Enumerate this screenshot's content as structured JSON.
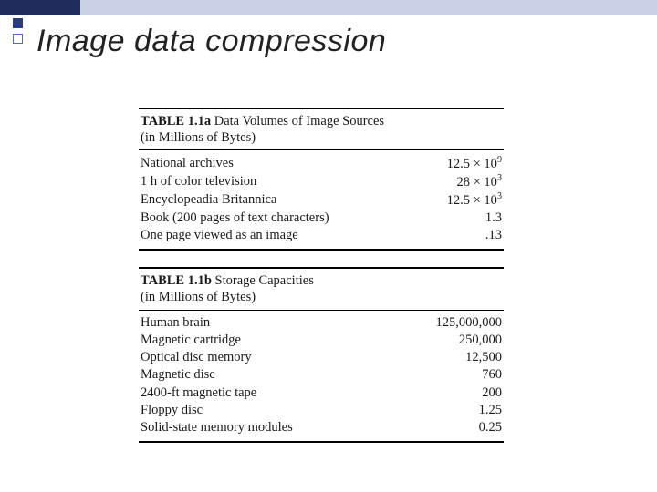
{
  "page": {
    "title": "Image data compression",
    "colors": {
      "topbar_dark": "#1f2c5c",
      "topbar_light": "#c9d0e8",
      "bullet_filled": "#2a3c7a",
      "bullet_border": "#5b6da8",
      "rule": "#000000",
      "text": "#1a1a1a",
      "background": "#ffffff"
    }
  },
  "table_a": {
    "label": "TABLE 1.1a",
    "caption_line1": "Data Volumes of Image Sources",
    "caption_line2": "(in Millions of Bytes)",
    "rows": [
      {
        "label": "National archives",
        "value_html": "12.5 × 10<sup>9</sup>"
      },
      {
        "label": "1 h of color television",
        "value_html": "28 × 10<sup>3</sup>"
      },
      {
        "label": "Encyclopeadia Britannica",
        "value_html": "12.5 × 10<sup>3</sup>"
      },
      {
        "label": "Book (200 pages of text characters)",
        "value_html": "1.3"
      },
      {
        "label": "One page viewed as an image",
        "value_html": ".13"
      }
    ]
  },
  "table_b": {
    "label": "TABLE 1.1b",
    "caption_line1": "Storage Capacities",
    "caption_line2": "(in Millions of Bytes)",
    "rows": [
      {
        "label": "Human brain",
        "value_html": "125,000,000"
      },
      {
        "label": "Magnetic cartridge",
        "value_html": "250,000"
      },
      {
        "label": "Optical disc memory",
        "value_html": "12,500"
      },
      {
        "label": "Magnetic disc",
        "value_html": "760"
      },
      {
        "label": "2400-ft magnetic tape",
        "value_html": "200"
      },
      {
        "label": "Floppy disc",
        "value_html": "1.25"
      },
      {
        "label": "Solid-state memory modules",
        "value_html": "0.25"
      }
    ]
  }
}
